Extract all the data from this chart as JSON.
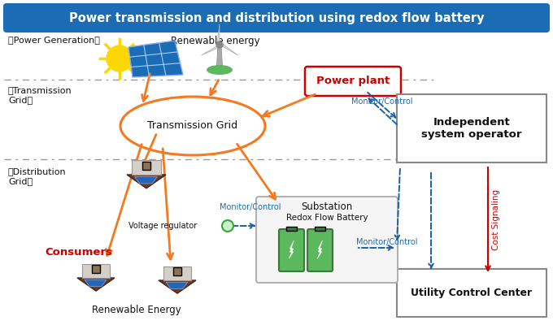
{
  "title": "Power transmission and distribution using redox flow battery",
  "title_bg": "#1a6db5",
  "title_fg": "#ffffff",
  "bg_color": "#ffffff",
  "labels": {
    "power_generation": "【Power Generation】",
    "renewable_energy_top": "Renewable energy",
    "transmission_grid_label": "【Transmission\nGrid】",
    "transmission_grid": "Transmission Grid",
    "distribution_grid": "【Distribution\nGrid】",
    "substation": "Substation",
    "redox_battery": "Redox Flow Battery",
    "power_plant": "Power plant",
    "independent_op": "Independent\nsystem operator",
    "utility_center": "Utility Control Center",
    "monitor_control_1": "Monitor/Control",
    "monitor_control_2": "Monitor/Control",
    "monitor_control_3": "Monitor/Control",
    "voltage_regulator": "Voltage regulator",
    "consumers": "Consumers",
    "renewable_energy_bot": "Renewable Energy",
    "cost_signaling": "Cost Signaling"
  },
  "colors": {
    "orange": "#f47920",
    "blue_dashed": "#1a5fa8",
    "red_dashed": "#cc0000",
    "red_text": "#cc0000",
    "blue_text": "#1a6db5",
    "black": "#111111",
    "gray_dashed": "#999999",
    "ellipse_fill": "#ffffff",
    "ellipse_edge": "#f47920",
    "box_edge": "#888888",
    "box_fill": "#ffffff",
    "power_plant_edge": "#cc0000",
    "power_plant_fill": "#ffffff",
    "substation_edge": "#aaaaaa",
    "substation_fill": "#f5f5f5",
    "green_circle_fill": "#cceecc",
    "green_circle_edge": "#33aa33",
    "battery_green": "#5cb85c",
    "battery_dark": "#3a7a3a"
  }
}
